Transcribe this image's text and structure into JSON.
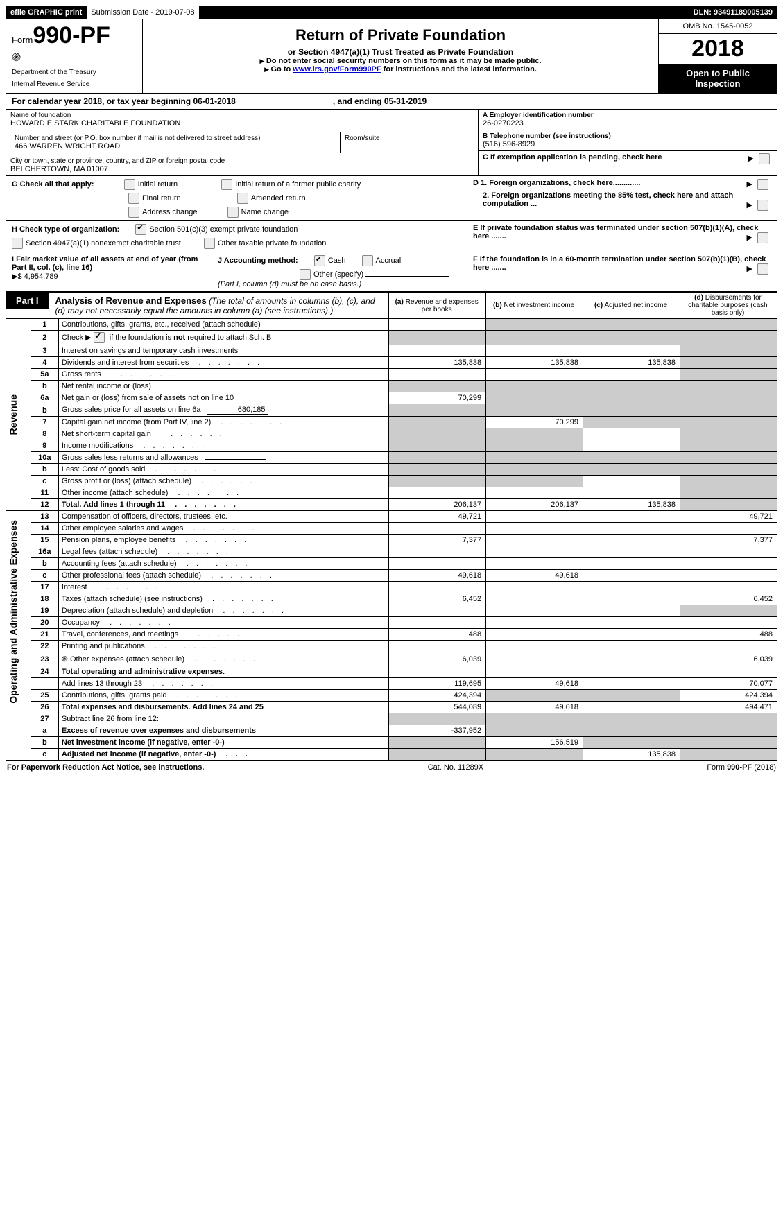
{
  "topbar": {
    "efile": "efile GRAPHIC print",
    "submission": "Submission Date - 2019-07-08",
    "dln": "DLN: 93491189005139"
  },
  "header": {
    "form_prefix": "Form",
    "form_no": "990-PF",
    "dept1": "Department of the Treasury",
    "dept2": "Internal Revenue Service",
    "title": "Return of Private Foundation",
    "subtitle": "or Section 4947(a)(1) Trust Treated as Private Foundation",
    "note1": "Do not enter social security numbers on this form as it may be made public.",
    "note2_pre": "Go to ",
    "note2_link": "www.irs.gov/Form990PF",
    "note2_post": " for instructions and the latest information.",
    "omb": "OMB No. 1545-0052",
    "year": "2018",
    "open_public": "Open to Public Inspection"
  },
  "cal": {
    "text_a": "For calendar year 2018, or tax year beginning 06-01-2018",
    "text_b": ", and ending 05-31-2019"
  },
  "info": {
    "name_lbl": "Name of foundation",
    "name": "HOWARD E STARK CHARITABLE FOUNDATION",
    "street_lbl": "Number and street (or P.O. box number if mail is not delivered to street address)",
    "street": "466 WARREN WRIGHT ROAD",
    "room_lbl": "Room/suite",
    "city_lbl": "City or town, state or province, country, and ZIP or foreign postal code",
    "city": "BELCHERTOWN, MA  01007",
    "a_lbl": "A Employer identification number",
    "a_val": "26-0270223",
    "b_lbl": "B Telephone number (see instructions)",
    "b_val": "(516) 596-8929",
    "c_lbl": "C  If exemption application is pending, check here",
    "d1": "D 1. Foreign organizations, check here.............",
    "d2": "2. Foreign organizations meeting the 85% test, check here and attach computation ...",
    "e": "E  If private foundation status was terminated under section 507(b)(1)(A), check here .......",
    "f": "F  If the foundation is in a 60-month termination under section 507(b)(1)(B), check here ......."
  },
  "g": {
    "label": "G Check all that apply:",
    "opts": [
      "Initial return",
      "Initial return of a former public charity",
      "Final return",
      "Amended return",
      "Address change",
      "Name change"
    ]
  },
  "h": {
    "label": "H Check type of organization:",
    "o1": "Section 501(c)(3) exempt private foundation",
    "o2": "Section 4947(a)(1) nonexempt charitable trust",
    "o3": "Other taxable private foundation"
  },
  "i": {
    "label": "I Fair market value of all assets at end of year (from Part II, col. (c), line 16)",
    "val": "4,954,789"
  },
  "j": {
    "label": "J Accounting method:",
    "cash": "Cash",
    "accrual": "Accrual",
    "other": "Other (specify)",
    "note": "(Part I, column (d) must be on cash basis.)"
  },
  "part1": {
    "tag": "Part I",
    "title": "Analysis of Revenue and Expenses",
    "title_note": "(The total of amounts in columns (b), (c), and (d) may not necessarily equal the amounts in column (a) (see instructions).)",
    "cols": {
      "a": "Revenue and expenses per books",
      "b": "Net investment income",
      "c": "Adjusted net income",
      "d": "Disbursements for charitable purposes (cash basis only)"
    }
  },
  "sections": {
    "revenue": "Revenue",
    "expenses": "Operating and Administrative Expenses"
  },
  "rows": [
    {
      "n": "1",
      "desc": "Contributions, gifts, grants, etc., received (attach schedule)",
      "a": "",
      "b": "shade",
      "c": "shade",
      "d": "shade"
    },
    {
      "n": "2",
      "desc": "Check ▶ ☑ if the foundation is not required to attach Sch. B",
      "a": "shade",
      "b": "shade",
      "c": "shade",
      "d": "shade",
      "special": "checkline"
    },
    {
      "n": "3",
      "desc": "Interest on savings and temporary cash investments",
      "a": "",
      "b": "",
      "c": "",
      "d": "shade"
    },
    {
      "n": "4",
      "desc": "Dividends and interest from securities",
      "a": "135,838",
      "b": "135,838",
      "c": "135,838",
      "d": "shade",
      "dots": true
    },
    {
      "n": "5a",
      "desc": "Gross rents",
      "a": "",
      "b": "",
      "c": "",
      "d": "shade",
      "dots": true
    },
    {
      "n": "b",
      "desc": "Net rental income or (loss)",
      "a": "shade",
      "b": "shade",
      "c": "shade",
      "d": "shade",
      "inline": ""
    },
    {
      "n": "6a",
      "desc": "Net gain or (loss) from sale of assets not on line 10",
      "a": "70,299",
      "b": "shade",
      "c": "shade",
      "d": "shade"
    },
    {
      "n": "b",
      "desc": "Gross sales price for all assets on line 6a",
      "a": "shade",
      "b": "shade",
      "c": "shade",
      "d": "shade",
      "inline": "680,185"
    },
    {
      "n": "7",
      "desc": "Capital gain net income (from Part IV, line 2)",
      "a": "shade",
      "b": "70,299",
      "c": "shade",
      "d": "shade",
      "dots": true
    },
    {
      "n": "8",
      "desc": "Net short-term capital gain",
      "a": "shade",
      "b": "shade",
      "c": "",
      "d": "shade",
      "dots": true
    },
    {
      "n": "9",
      "desc": "Income modifications",
      "a": "shade",
      "b": "shade",
      "c": "",
      "d": "shade",
      "dots": true
    },
    {
      "n": "10a",
      "desc": "Gross sales less returns and allowances",
      "a": "shade",
      "b": "shade",
      "c": "shade",
      "d": "shade",
      "inline": ""
    },
    {
      "n": "b",
      "desc": "Less: Cost of goods sold",
      "a": "shade",
      "b": "shade",
      "c": "shade",
      "d": "shade",
      "inline": "",
      "dots": true
    },
    {
      "n": "c",
      "desc": "Gross profit or (loss) (attach schedule)",
      "a": "shade",
      "b": "shade",
      "c": "",
      "d": "shade",
      "dots": true
    },
    {
      "n": "11",
      "desc": "Other income (attach schedule)",
      "a": "",
      "b": "",
      "c": "",
      "d": "shade",
      "dots": true
    },
    {
      "n": "12",
      "desc": "Total. Add lines 1 through 11",
      "a": "206,137",
      "b": "206,137",
      "c": "135,838",
      "d": "shade",
      "bold": true,
      "dots": true
    }
  ],
  "exp_rows": [
    {
      "n": "13",
      "desc": "Compensation of officers, directors, trustees, etc.",
      "a": "49,721",
      "b": "",
      "c": "",
      "d": "49,721"
    },
    {
      "n": "14",
      "desc": "Other employee salaries and wages",
      "a": "",
      "b": "",
      "c": "",
      "d": "",
      "dots": true
    },
    {
      "n": "15",
      "desc": "Pension plans, employee benefits",
      "a": "7,377",
      "b": "",
      "c": "",
      "d": "7,377",
      "dots": true
    },
    {
      "n": "16a",
      "desc": "Legal fees (attach schedule)",
      "a": "",
      "b": "",
      "c": "",
      "d": "",
      "dots": true
    },
    {
      "n": "b",
      "desc": "Accounting fees (attach schedule)",
      "a": "",
      "b": "",
      "c": "",
      "d": "",
      "dots": true
    },
    {
      "n": "c",
      "desc": "Other professional fees (attach schedule)",
      "a": "49,618",
      "b": "49,618",
      "c": "",
      "d": "",
      "dots": true
    },
    {
      "n": "17",
      "desc": "Interest",
      "a": "",
      "b": "",
      "c": "",
      "d": "",
      "dots": true
    },
    {
      "n": "18",
      "desc": "Taxes (attach schedule) (see instructions)",
      "a": "6,452",
      "b": "",
      "c": "",
      "d": "6,452",
      "dots": true
    },
    {
      "n": "19",
      "desc": "Depreciation (attach schedule) and depletion",
      "a": "",
      "b": "",
      "c": "",
      "d": "shade",
      "dots": true
    },
    {
      "n": "20",
      "desc": "Occupancy",
      "a": "",
      "b": "",
      "c": "",
      "d": "",
      "dots": true
    },
    {
      "n": "21",
      "desc": "Travel, conferences, and meetings",
      "a": "488",
      "b": "",
      "c": "",
      "d": "488",
      "dots": true
    },
    {
      "n": "22",
      "desc": "Printing and publications",
      "a": "",
      "b": "",
      "c": "",
      "d": "",
      "dots": true
    },
    {
      "n": "23",
      "desc": "Other expenses (attach schedule)",
      "a": "6,039",
      "b": "",
      "c": "",
      "d": "6,039",
      "dots": true,
      "icon": true
    },
    {
      "n": "24",
      "desc": "Total operating and administrative expenses.",
      "bold": true,
      "continue": true
    },
    {
      "n": "",
      "desc": "Add lines 13 through 23",
      "a": "119,695",
      "b": "49,618",
      "c": "",
      "d": "70,077",
      "dots": true
    },
    {
      "n": "25",
      "desc": "Contributions, gifts, grants paid",
      "a": "424,394",
      "b": "shade",
      "c": "shade",
      "d": "424,394",
      "dots": true
    },
    {
      "n": "26",
      "desc": "Total expenses and disbursements. Add lines 24 and 25",
      "a": "544,089",
      "b": "49,618",
      "c": "",
      "d": "494,471",
      "bold": true
    }
  ],
  "bottom_rows": [
    {
      "n": "27",
      "desc": "Subtract line 26 from line 12:"
    },
    {
      "n": "a",
      "desc": "Excess of revenue over expenses and disbursements",
      "a": "-337,952",
      "b": "shade",
      "c": "shade",
      "d": "shade",
      "bold": true
    },
    {
      "n": "b",
      "desc": "Net investment income (if negative, enter -0-)",
      "a": "shade",
      "b": "156,519",
      "c": "shade",
      "d": "shade",
      "bold": true
    },
    {
      "n": "c",
      "desc": "Adjusted net income (if negative, enter -0-)",
      "a": "shade",
      "b": "shade",
      "c": "135,838",
      "d": "shade",
      "bold": true,
      "dots": true
    }
  ],
  "footer": {
    "left": "For Paperwork Reduction Act Notice, see instructions.",
    "mid": "Cat. No. 11289X",
    "right": "Form 990-PF (2018)"
  }
}
